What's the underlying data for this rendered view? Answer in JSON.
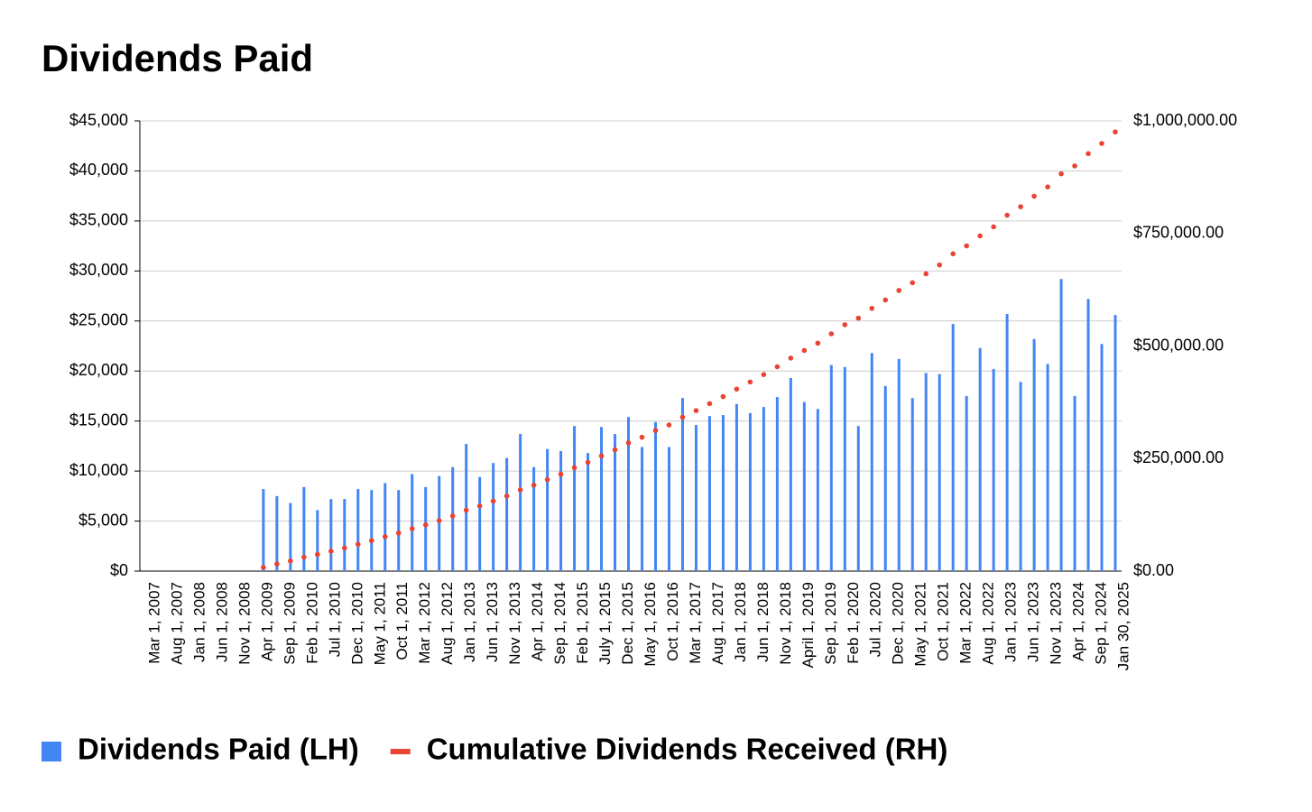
{
  "chart_data": {
    "type": "bar_line",
    "title": "Dividends Paid",
    "categories": [
      "Mar 1, 2007",
      null,
      null,
      null,
      null,
      "Aug 1, 2007",
      null,
      null,
      null,
      null,
      "Jan 1, 2008",
      null,
      null,
      null,
      null,
      "Jun 1, 2008",
      null,
      null,
      null,
      null,
      "Nov 1, 2008",
      null,
      null,
      null,
      null,
      "Apr 1, 2009",
      null,
      null,
      null,
      null,
      "Sep 1, 2009",
      null,
      null,
      null,
      null,
      "Feb 1, 2010",
      null,
      null,
      null,
      null,
      "Jul 1, 2010",
      null,
      null,
      null,
      null,
      "Dec 1, 2010",
      null,
      null,
      null,
      null,
      "May 1, 2011",
      null,
      null,
      null,
      null,
      "Oct 1, 2011",
      null,
      null,
      null,
      null,
      "Mar 1, 2012",
      null,
      null,
      null,
      null,
      "Aug 1, 2012",
      null,
      null,
      null,
      null,
      "Jan 1, 2013",
      null,
      null,
      null,
      null,
      "Jun 1, 2013",
      null,
      null,
      null,
      null,
      "Nov 1, 2013",
      null,
      null,
      null,
      null,
      "Apr 1, 2014",
      null,
      null,
      null,
      null,
      "Sep 1, 2014",
      null,
      null,
      null,
      null,
      "Feb 1, 2015",
      null,
      null,
      null,
      null,
      "July 1, 2015",
      null,
      null,
      null,
      null,
      "Dec 1, 2015",
      null,
      null,
      null,
      null,
      "May 1, 2016",
      null,
      null,
      null,
      null,
      "Oct 1, 2016",
      null,
      null,
      null,
      null,
      "Mar 1, 2017",
      null,
      null,
      null,
      null,
      "Aug 1, 2017",
      null,
      null,
      null,
      null,
      "Jan 1, 2018",
      null,
      null,
      null,
      null,
      "Jun 1, 2018",
      null,
      null,
      null,
      null,
      "Nov 1, 2018",
      null,
      null,
      null,
      null,
      "April 1, 2019",
      null,
      null,
      null,
      null,
      "Sep 1, 2019",
      null,
      null,
      null,
      null,
      "Feb 1, 2020",
      null,
      null,
      null,
      null,
      "Jul 1, 2020",
      null,
      null,
      null,
      null,
      "Dec 1, 2020",
      null,
      null,
      null,
      null,
      "May 1, 2021",
      null,
      null,
      null,
      null,
      "Oct 1, 2021",
      null,
      null,
      null,
      null,
      "Mar 1, 2022",
      null,
      null,
      null,
      null,
      "Aug 1, 2022",
      null,
      null,
      null,
      null,
      "Jan 1, 2023",
      null,
      null,
      null,
      null,
      "Jun 1, 2023",
      null,
      null,
      null,
      null,
      "Nov 1, 2023",
      null,
      null,
      null,
      null,
      "Apr 1, 2024",
      null,
      null,
      null,
      null,
      "Sep 1, 2024",
      null,
      null,
      null,
      null,
      "Jan 30, 2025"
    ],
    "series": [
      {
        "name": "Dividends Paid (LH)",
        "color": "#4285f4",
        "type": "bar",
        "axis": "y",
        "values": [
          null,
          null,
          null,
          null,
          null,
          null,
          null,
          null,
          null,
          null,
          null,
          null,
          null,
          null,
          null,
          null,
          null,
          null,
          null,
          null,
          null,
          null,
          null,
          null,
          8200,
          null,
          null,
          7500,
          null,
          null,
          6800,
          null,
          null,
          8400,
          null,
          null,
          6100,
          null,
          null,
          7200,
          null,
          null,
          7200,
          null,
          null,
          8200,
          null,
          null,
          8100,
          null,
          null,
          8800,
          null,
          null,
          8100,
          null,
          null,
          9700,
          null,
          null,
          8400,
          null,
          null,
          9500,
          null,
          null,
          10400,
          null,
          null,
          12700,
          null,
          null,
          9400,
          null,
          null,
          10800,
          null,
          null,
          11300,
          null,
          null,
          13700,
          null,
          null,
          10400,
          null,
          null,
          12200,
          null,
          null,
          12000,
          null,
          null,
          14500,
          null,
          null,
          11800,
          null,
          null,
          14400,
          null,
          null,
          13700,
          null,
          null,
          15400,
          null,
          null,
          12400,
          null,
          null,
          14900,
          null,
          null,
          12400,
          null,
          null,
          17300,
          null,
          null,
          14600,
          null,
          null,
          15500,
          null,
          null,
          15600,
          null,
          null,
          16700,
          null,
          null,
          15800,
          null,
          null,
          16400,
          null,
          null,
          17400,
          null,
          null,
          19300,
          null,
          null,
          16900,
          null,
          null,
          16200,
          null,
          null,
          20600,
          null,
          null,
          20400,
          null,
          null,
          14500,
          null,
          null,
          21800,
          null,
          null,
          18500,
          null,
          null,
          21200,
          null,
          null,
          17300,
          null,
          null,
          19800,
          null,
          null,
          19700,
          null,
          null,
          24700,
          null,
          null,
          17500,
          null,
          null,
          22300,
          null,
          null,
          20200,
          null,
          null,
          25700,
          null,
          null,
          18900,
          null,
          null,
          23200,
          null,
          null,
          20700,
          null,
          null,
          29200,
          null,
          null,
          17500,
          null,
          null,
          27200,
          null,
          null,
          22700,
          null,
          null,
          25600,
          null,
          null
        ]
      },
      {
        "name": "Cumulative Dividends Received (RH)",
        "color": "#ea4335",
        "type": "dots",
        "axis": "y2",
        "values": [
          null,
          null,
          null,
          null,
          null,
          null,
          null,
          null,
          null,
          null,
          null,
          null,
          null,
          null,
          null,
          null,
          null,
          null,
          null,
          null,
          null,
          null,
          null,
          null,
          8200,
          null,
          null,
          15700,
          null,
          null,
          22500,
          null,
          null,
          30900,
          null,
          null,
          37000,
          null,
          null,
          44200,
          null,
          null,
          51400,
          null,
          null,
          59600,
          null,
          null,
          67700,
          null,
          null,
          76500,
          null,
          null,
          84600,
          null,
          null,
          94300,
          null,
          null,
          102700,
          null,
          null,
          112200,
          null,
          null,
          122600,
          null,
          null,
          135300,
          null,
          null,
          144700,
          null,
          null,
          155500,
          null,
          null,
          166800,
          null,
          null,
          180500,
          null,
          null,
          190900,
          null,
          null,
          203100,
          null,
          null,
          215100,
          null,
          null,
          229600,
          null,
          null,
          241400,
          null,
          null,
          255800,
          null,
          null,
          269500,
          null,
          null,
          284900,
          null,
          null,
          297300,
          null,
          null,
          312200,
          null,
          null,
          324600,
          null,
          null,
          341900,
          null,
          null,
          356500,
          null,
          null,
          372000,
          null,
          null,
          387600,
          null,
          null,
          404300,
          null,
          null,
          420100,
          null,
          null,
          436500,
          null,
          null,
          453900,
          null,
          null,
          473200,
          null,
          null,
          490100,
          null,
          null,
          506300,
          null,
          null,
          526900,
          null,
          null,
          547300,
          null,
          null,
          561800,
          null,
          null,
          583600,
          null,
          null,
          602100,
          null,
          null,
          623300,
          null,
          null,
          640600,
          null,
          null,
          660400,
          null,
          null,
          680100,
          null,
          null,
          704800,
          null,
          null,
          722300,
          null,
          null,
          744600,
          null,
          null,
          764800,
          null,
          null,
          790500,
          null,
          null,
          809400,
          null,
          null,
          832600,
          null,
          null,
          853300,
          null,
          null,
          882500,
          null,
          null,
          900000,
          null,
          null,
          927200,
          null,
          null,
          949900,
          null,
          null,
          975500,
          null,
          null
        ]
      }
    ],
    "ylim": [
      0,
      45000
    ],
    "yticks": [
      {
        "value": 0,
        "label": "$0"
      },
      {
        "value": 5000,
        "label": "$5,000"
      },
      {
        "value": 10000,
        "label": "$10,000"
      },
      {
        "value": 15000,
        "label": "$15,000"
      },
      {
        "value": 20000,
        "label": "$20,000"
      },
      {
        "value": 25000,
        "label": "$25,000"
      },
      {
        "value": 30000,
        "label": "$30,000"
      },
      {
        "value": 35000,
        "label": "$35,000"
      },
      {
        "value": 40000,
        "label": "$40,000"
      },
      {
        "value": 45000,
        "label": "$45,000"
      }
    ],
    "y2lim": [
      0,
      1000000
    ],
    "y2ticks": [
      {
        "value": 0,
        "label": "$0.00"
      },
      {
        "value": 250000,
        "label": "$250,000.00"
      },
      {
        "value": 500000,
        "label": "$500,000.00"
      },
      {
        "value": 750000,
        "label": "$750,000.00"
      },
      {
        "value": 1000000,
        "label": "$1,000,000.00"
      }
    ],
    "grid": true,
    "legend": "bottom"
  }
}
